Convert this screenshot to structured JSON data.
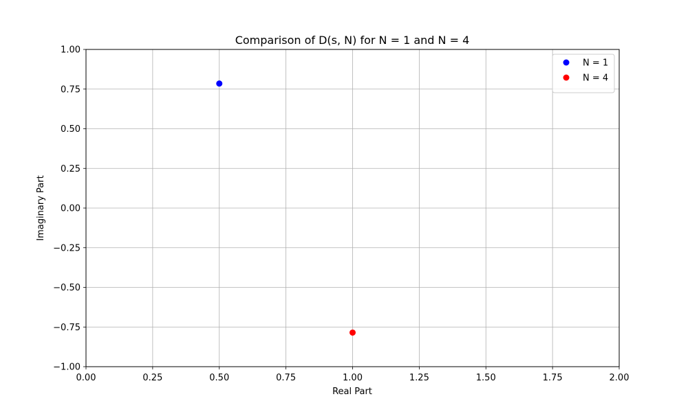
{
  "chart_data": {
    "type": "scatter",
    "title": "Comparison of D(s, N) for N = 1 and N = 4",
    "xlabel": "Real Part",
    "ylabel": "Imaginary Part",
    "xlim": [
      0,
      2
    ],
    "ylim": [
      -1,
      1
    ],
    "x_ticks": [
      0,
      0.25,
      0.5,
      0.75,
      1.0,
      1.25,
      1.5,
      1.75,
      2.0
    ],
    "x_tick_labels": [
      "0.00",
      "0.25",
      "0.50",
      "0.75",
      "1.00",
      "1.25",
      "1.50",
      "1.75",
      "2.00"
    ],
    "y_ticks": [
      -1,
      -0.75,
      -0.5,
      -0.25,
      0,
      0.25,
      0.5,
      0.75,
      1.0
    ],
    "y_tick_labels": [
      "−1.00",
      "−0.75",
      "−0.50",
      "−0.25",
      "0.00",
      "0.25",
      "0.50",
      "0.75",
      "1.00"
    ],
    "grid": true,
    "legend_position": "top-right",
    "series": [
      {
        "name": "N = 1",
        "color": "#0000ff",
        "points": [
          {
            "x": 0.5,
            "y": 0.785
          }
        ]
      },
      {
        "name": "N = 4",
        "color": "#ff0000",
        "points": [
          {
            "x": 1.0,
            "y": -0.785
          }
        ]
      }
    ]
  }
}
